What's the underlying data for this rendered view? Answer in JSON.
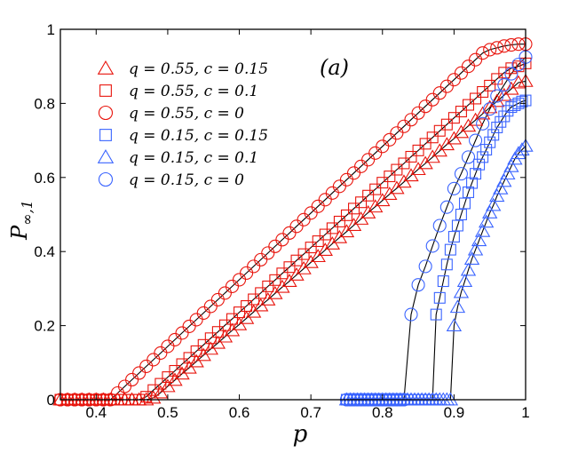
{
  "chart_data": {
    "type": "scatter",
    "panel_label": "(a)",
    "xlabel": "p",
    "ylabel": "P∞,1",
    "xlim": [
      0.35,
      1.0
    ],
    "ylim": [
      0,
      1
    ],
    "xticks": [
      "0.4",
      "0.5",
      "0.6",
      "0.7",
      "0.8",
      "0.9",
      "1"
    ],
    "yticks": [
      "0",
      "0.2",
      "0.4",
      "0.6",
      "0.8",
      "1"
    ],
    "legend_position": "top-left",
    "colors": {
      "red": "#e8140c",
      "blue": "#3a64ff",
      "theory": "#000000"
    },
    "series": [
      {
        "name": "q = 0.55, c = 0.15",
        "marker": "triangle",
        "color": "red",
        "x": [
          0.35,
          0.36,
          0.37,
          0.38,
          0.39,
          0.4,
          0.41,
          0.42,
          0.43,
          0.44,
          0.45,
          0.46,
          0.47,
          0.48,
          0.49,
          0.5,
          0.51,
          0.52,
          0.53,
          0.54,
          0.55,
          0.56,
          0.57,
          0.58,
          0.59,
          0.6,
          0.61,
          0.62,
          0.63,
          0.64,
          0.65,
          0.66,
          0.67,
          0.68,
          0.69,
          0.7,
          0.71,
          0.72,
          0.73,
          0.74,
          0.75,
          0.76,
          0.77,
          0.78,
          0.79,
          0.8,
          0.81,
          0.82,
          0.83,
          0.84,
          0.85,
          0.86,
          0.87,
          0.88,
          0.89,
          0.9,
          0.91,
          0.92,
          0.93,
          0.94,
          0.95,
          0.96,
          0.97,
          0.98,
          0.99,
          1.0
        ],
        "y": [
          0,
          0,
          0,
          0,
          0,
          0,
          0,
          0,
          0,
          0,
          0,
          0,
          0,
          0.005,
          0.019,
          0.036,
          0.053,
          0.07,
          0.086,
          0.103,
          0.12,
          0.137,
          0.153,
          0.17,
          0.187,
          0.203,
          0.22,
          0.237,
          0.254,
          0.27,
          0.287,
          0.304,
          0.32,
          0.337,
          0.354,
          0.371,
          0.387,
          0.404,
          0.421,
          0.438,
          0.454,
          0.471,
          0.488,
          0.505,
          0.521,
          0.538,
          0.555,
          0.571,
          0.588,
          0.605,
          0.622,
          0.638,
          0.655,
          0.672,
          0.689,
          0.705,
          0.722,
          0.739,
          0.755,
          0.772,
          0.789,
          0.806,
          0.822,
          0.839,
          0.856,
          0.86
        ]
      },
      {
        "name": "q = 0.55, c = 0.1",
        "marker": "square",
        "color": "red",
        "x": [
          0.35,
          0.36,
          0.37,
          0.38,
          0.39,
          0.4,
          0.41,
          0.42,
          0.43,
          0.44,
          0.45,
          0.46,
          0.47,
          0.48,
          0.49,
          0.5,
          0.51,
          0.52,
          0.53,
          0.54,
          0.55,
          0.56,
          0.57,
          0.58,
          0.59,
          0.6,
          0.61,
          0.62,
          0.63,
          0.64,
          0.65,
          0.66,
          0.67,
          0.68,
          0.69,
          0.7,
          0.71,
          0.72,
          0.73,
          0.74,
          0.75,
          0.76,
          0.77,
          0.78,
          0.79,
          0.8,
          0.81,
          0.82,
          0.83,
          0.84,
          0.85,
          0.86,
          0.87,
          0.88,
          0.89,
          0.9,
          0.91,
          0.92,
          0.93,
          0.94,
          0.95,
          0.96,
          0.97,
          0.98,
          0.99,
          1.0
        ],
        "y": [
          0,
          0,
          0,
          0,
          0,
          0,
          0,
          0,
          0,
          0,
          0,
          0,
          0.008,
          0.026,
          0.043,
          0.061,
          0.078,
          0.096,
          0.113,
          0.131,
          0.148,
          0.166,
          0.183,
          0.201,
          0.218,
          0.236,
          0.253,
          0.271,
          0.288,
          0.306,
          0.323,
          0.341,
          0.358,
          0.376,
          0.393,
          0.411,
          0.428,
          0.446,
          0.463,
          0.481,
          0.498,
          0.516,
          0.533,
          0.551,
          0.568,
          0.586,
          0.603,
          0.621,
          0.638,
          0.656,
          0.673,
          0.691,
          0.708,
          0.726,
          0.743,
          0.761,
          0.778,
          0.796,
          0.813,
          0.831,
          0.848,
          0.866,
          0.883,
          0.895,
          0.9,
          0.908
        ]
      },
      {
        "name": "q = 0.55, c = 0",
        "marker": "circle",
        "color": "red",
        "x": [
          0.35,
          0.36,
          0.37,
          0.38,
          0.39,
          0.4,
          0.41,
          0.42,
          0.43,
          0.44,
          0.45,
          0.46,
          0.47,
          0.48,
          0.49,
          0.5,
          0.51,
          0.52,
          0.53,
          0.54,
          0.55,
          0.56,
          0.57,
          0.58,
          0.59,
          0.6,
          0.61,
          0.62,
          0.63,
          0.64,
          0.65,
          0.66,
          0.67,
          0.68,
          0.69,
          0.7,
          0.71,
          0.72,
          0.73,
          0.74,
          0.75,
          0.76,
          0.77,
          0.78,
          0.79,
          0.8,
          0.81,
          0.82,
          0.83,
          0.84,
          0.85,
          0.86,
          0.87,
          0.88,
          0.89,
          0.9,
          0.91,
          0.92,
          0.93,
          0.94,
          0.95,
          0.96,
          0.97,
          0.98,
          0.99,
          1.0
        ],
        "y": [
          0,
          0,
          0,
          0,
          0,
          0,
          0,
          0,
          0.018,
          0.036,
          0.054,
          0.072,
          0.09,
          0.108,
          0.126,
          0.144,
          0.162,
          0.18,
          0.198,
          0.216,
          0.234,
          0.252,
          0.27,
          0.288,
          0.306,
          0.324,
          0.342,
          0.36,
          0.378,
          0.396,
          0.414,
          0.432,
          0.45,
          0.468,
          0.486,
          0.504,
          0.522,
          0.54,
          0.558,
          0.576,
          0.594,
          0.612,
          0.63,
          0.648,
          0.666,
          0.684,
          0.702,
          0.72,
          0.738,
          0.756,
          0.774,
          0.792,
          0.81,
          0.828,
          0.846,
          0.864,
          0.882,
          0.9,
          0.918,
          0.936,
          0.945,
          0.95,
          0.955,
          0.958,
          0.96,
          0.96
        ]
      },
      {
        "name": "q = 0.15, c = 0.15",
        "marker": "square",
        "color": "blue",
        "x": [
          0.75,
          0.755,
          0.76,
          0.765,
          0.77,
          0.775,
          0.78,
          0.785,
          0.79,
          0.795,
          0.8,
          0.805,
          0.81,
          0.815,
          0.82,
          0.825,
          0.83,
          0.835,
          0.84,
          0.845,
          0.85,
          0.855,
          0.86,
          0.865,
          0.87,
          0.875,
          0.88,
          0.885,
          0.89,
          0.895,
          0.9,
          0.905,
          0.91,
          0.915,
          0.92,
          0.925,
          0.93,
          0.935,
          0.94,
          0.945,
          0.95,
          0.955,
          0.96,
          0.965,
          0.97,
          0.975,
          0.98,
          0.985,
          0.99,
          0.995,
          1.0
        ],
        "y": [
          0,
          0,
          0,
          0,
          0,
          0,
          0,
          0,
          0,
          0,
          0,
          0,
          0,
          0,
          0,
          0,
          0,
          0,
          0,
          0,
          0,
          0,
          0,
          0,
          0,
          0.23,
          0.275,
          0.32,
          0.365,
          0.405,
          0.44,
          0.47,
          0.5,
          0.53,
          0.56,
          0.585,
          0.61,
          0.635,
          0.655,
          0.675,
          0.695,
          0.715,
          0.735,
          0.75,
          0.765,
          0.78,
          0.79,
          0.795,
          0.8,
          0.805,
          0.808
        ]
      },
      {
        "name": "q = 0.15, c = 0.1",
        "marker": "triangle",
        "color": "blue",
        "x": [
          0.75,
          0.755,
          0.76,
          0.765,
          0.77,
          0.775,
          0.78,
          0.785,
          0.79,
          0.795,
          0.8,
          0.805,
          0.81,
          0.815,
          0.82,
          0.825,
          0.83,
          0.835,
          0.84,
          0.845,
          0.85,
          0.855,
          0.86,
          0.865,
          0.87,
          0.875,
          0.88,
          0.885,
          0.89,
          0.895,
          0.9,
          0.905,
          0.91,
          0.915,
          0.92,
          0.925,
          0.93,
          0.935,
          0.94,
          0.945,
          0.95,
          0.955,
          0.96,
          0.965,
          0.97,
          0.975,
          0.98,
          0.985,
          0.99,
          0.995,
          1.0
        ],
        "y": [
          0,
          0,
          0,
          0,
          0,
          0,
          0,
          0,
          0,
          0,
          0,
          0,
          0,
          0,
          0,
          0,
          0,
          0,
          0,
          0,
          0,
          0,
          0,
          0,
          0,
          0,
          0,
          0,
          0,
          0,
          0.2,
          0.25,
          0.29,
          0.32,
          0.35,
          0.38,
          0.405,
          0.43,
          0.455,
          0.48,
          0.505,
          0.525,
          0.55,
          0.57,
          0.59,
          0.61,
          0.63,
          0.65,
          0.665,
          0.675,
          0.685
        ]
      },
      {
        "name": "q = 0.15, c = 0",
        "marker": "circle",
        "color": "blue",
        "x": [
          0.75,
          0.755,
          0.76,
          0.765,
          0.77,
          0.775,
          0.78,
          0.785,
          0.79,
          0.795,
          0.8,
          0.805,
          0.81,
          0.815,
          0.82,
          0.825,
          0.83,
          0.84,
          0.85,
          0.86,
          0.87,
          0.88,
          0.89,
          0.9,
          0.91,
          0.92,
          0.93,
          0.94,
          0.95,
          0.96,
          0.97,
          0.98,
          0.99,
          1.0
        ],
        "y": [
          0,
          0,
          0,
          0,
          0,
          0,
          0,
          0,
          0,
          0,
          0,
          0,
          0,
          0,
          0,
          0,
          0,
          0.23,
          0.31,
          0.36,
          0.415,
          0.47,
          0.52,
          0.57,
          0.61,
          0.655,
          0.7,
          0.745,
          0.785,
          0.82,
          0.85,
          0.88,
          0.905,
          0.925
        ]
      }
    ]
  }
}
